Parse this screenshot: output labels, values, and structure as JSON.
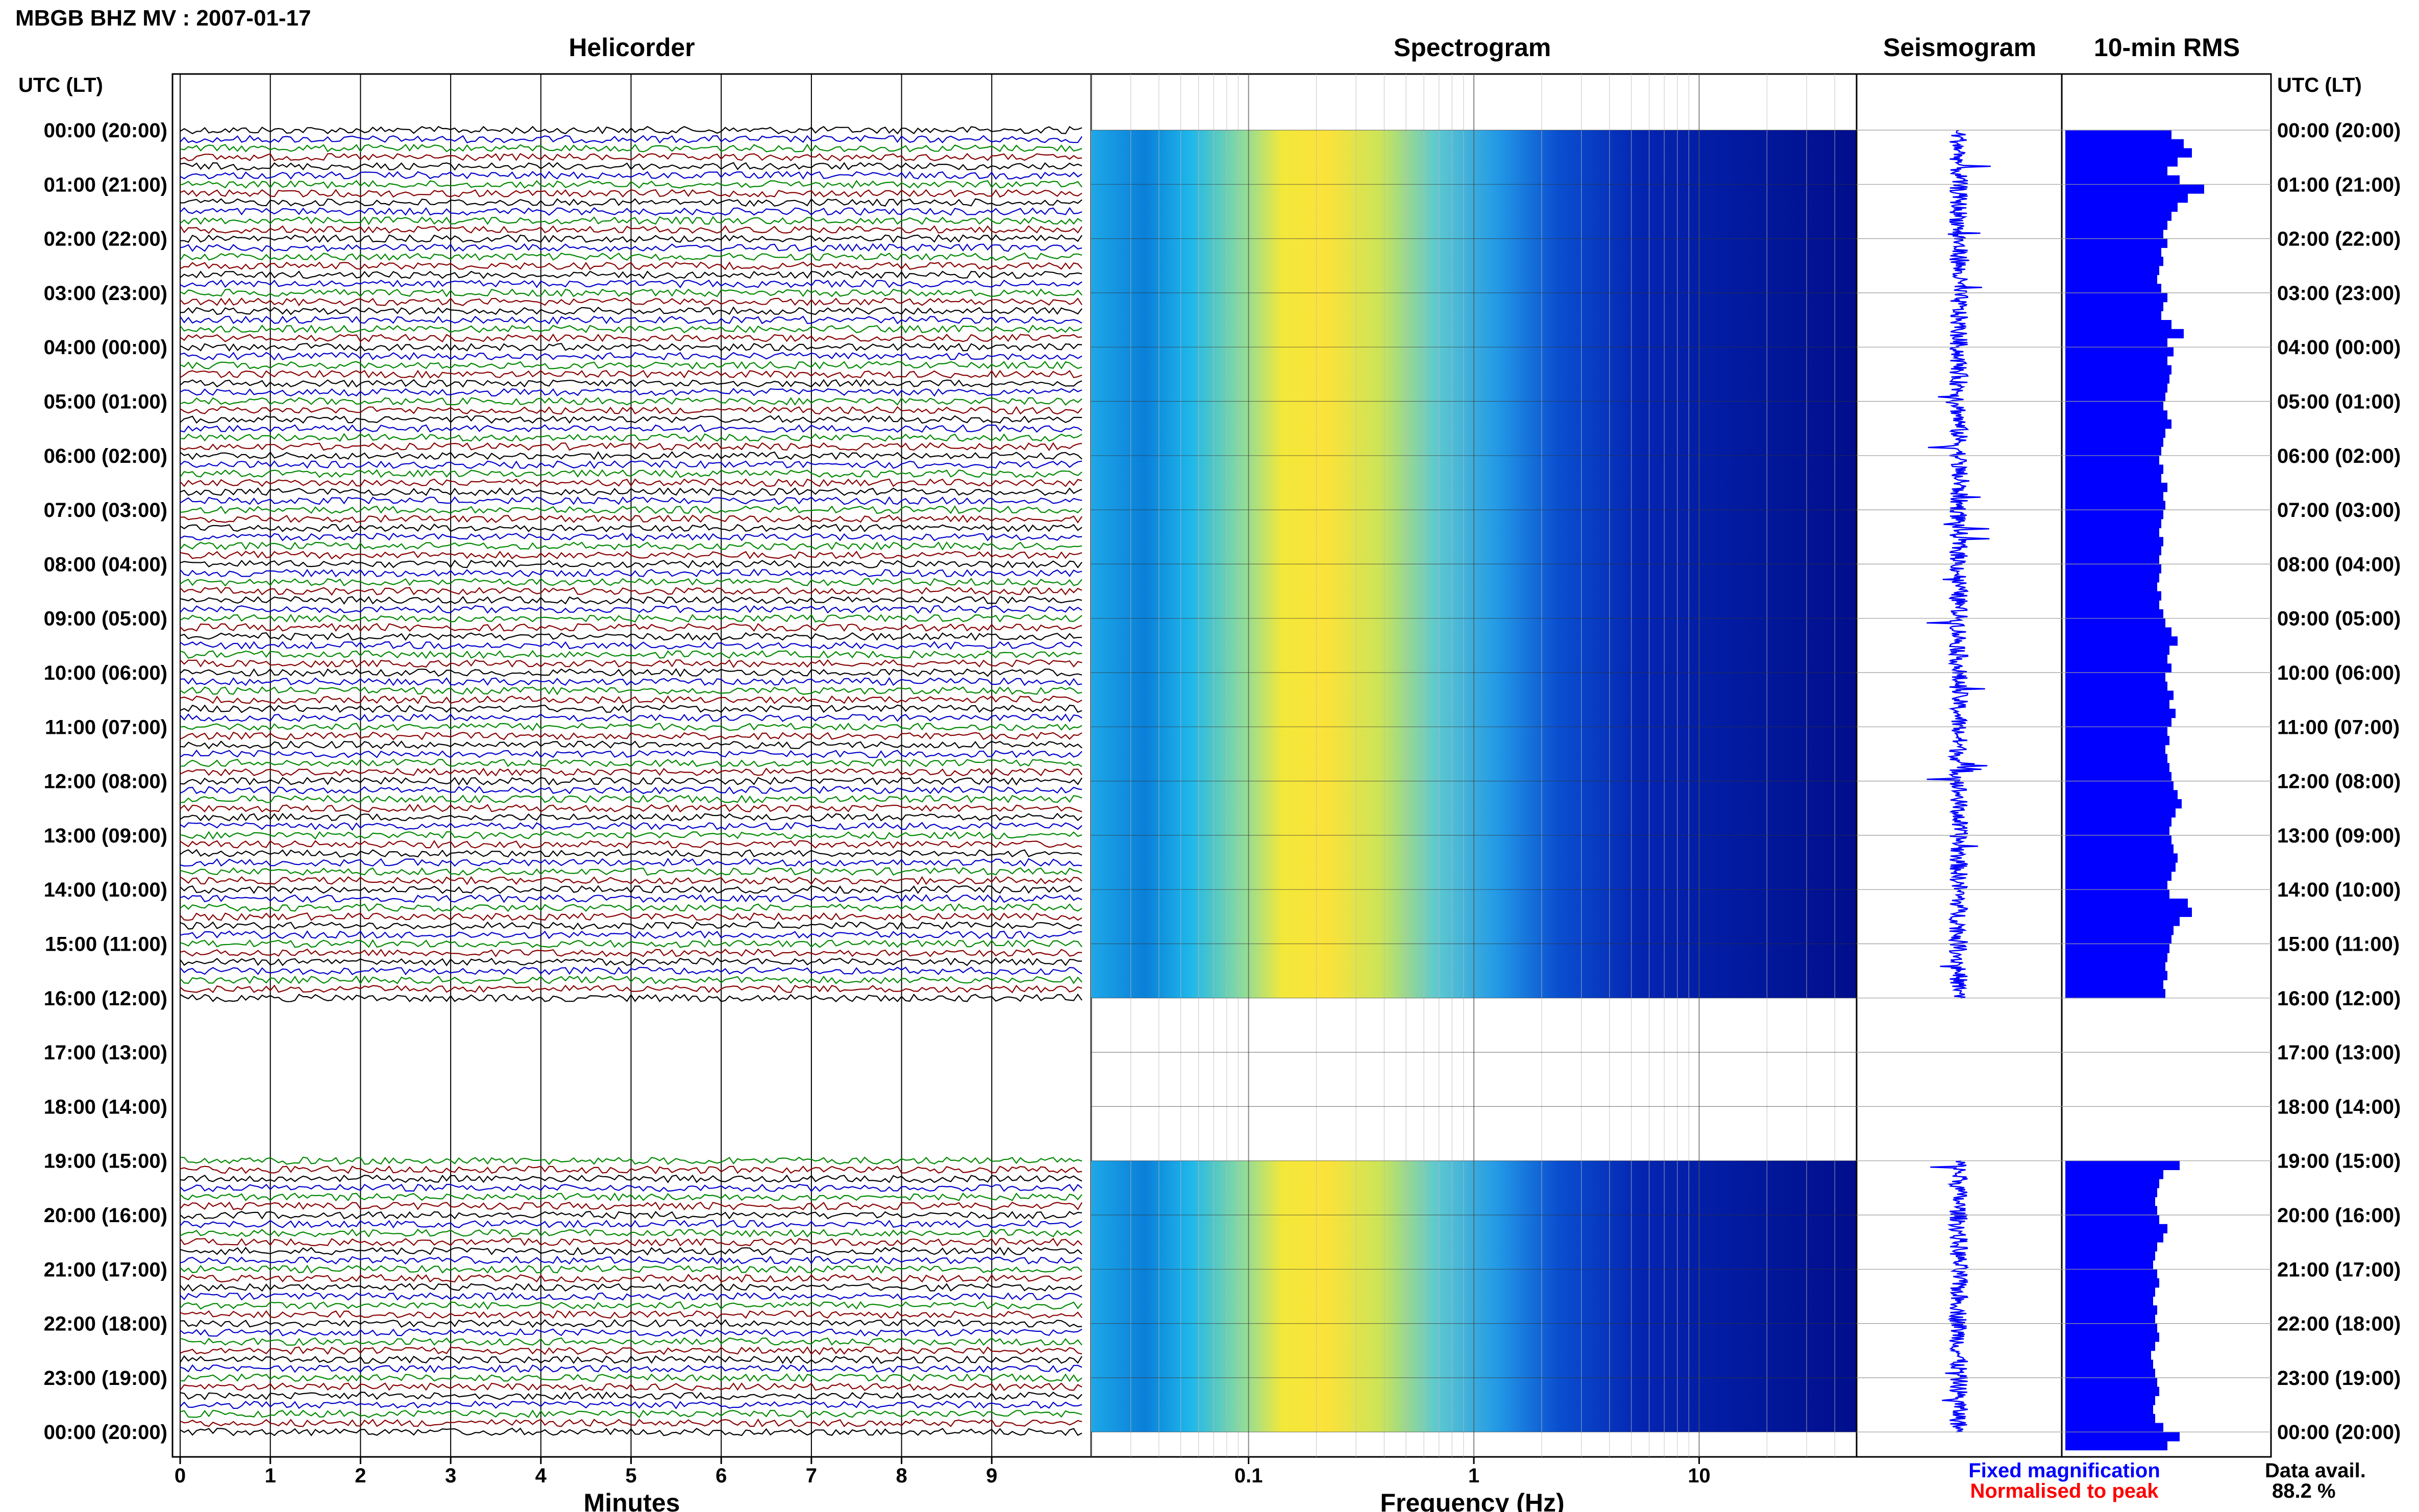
{
  "header": {
    "title": "MBGB BHZ MV : 2007-01-17",
    "utc_label_left": "UTC (LT)",
    "utc_label_right": "UTC (LT)"
  },
  "panels": {
    "helicorder": "Helicorder",
    "spectrogram": "Spectrogram",
    "seismogram": "Seismogram",
    "rms": "10-min RMS"
  },
  "footer": {
    "minutes_label": "Minutes",
    "frequency_label": "Frequency (Hz)",
    "legend_fixed": "Fixed magnification",
    "legend_normalised": "Normalised to peak",
    "data_avail_label": "Data avail.",
    "data_avail_value": "88.2 %"
  },
  "colors": {
    "legend_fixed": "#0000ff",
    "legend_normalised": "#ff0000",
    "trace_palette": [
      "#000000",
      "#0000cc",
      "#008800",
      "#880000"
    ],
    "rms_bar": "#0000ff",
    "seismogram_trace": "#0000ff"
  },
  "time_labels": [
    "00:00 (20:00)",
    "01:00 (21:00)",
    "02:00 (22:00)",
    "03:00 (23:00)",
    "04:00 (00:00)",
    "05:00 (01:00)",
    "06:00 (02:00)",
    "07:00 (03:00)",
    "08:00 (04:00)",
    "09:00 (05:00)",
    "10:00 (06:00)",
    "11:00 (07:00)",
    "12:00 (08:00)",
    "13:00 (09:00)",
    "14:00 (10:00)",
    "15:00 (11:00)",
    "16:00 (12:00)",
    "17:00 (13:00)",
    "18:00 (14:00)",
    "19:00 (15:00)",
    "20:00 (16:00)",
    "21:00 (17:00)",
    "22:00 (18:00)",
    "23:00 (19:00)",
    "00:00 (20:00)"
  ],
  "chart_data": [
    {
      "type": "line",
      "panel": "helicorder",
      "xlabel": "Minutes",
      "x_ticks": [
        "0",
        "1",
        "2",
        "3",
        "4",
        "5",
        "6",
        "7",
        "8",
        "9"
      ],
      "xlim": [
        0,
        10
      ],
      "rows_per_hour": 6,
      "data_gaps_utc_hours": [
        [
          16.0,
          18.85
        ]
      ]
    },
    {
      "type": "heatmap",
      "panel": "spectrogram",
      "xlabel": "Frequency (Hz)",
      "x_scale": "log",
      "x_ticks": [
        "0.1",
        "1",
        "10"
      ],
      "xlim": [
        0.02,
        50
      ],
      "data_gaps_utc_hours": [
        [
          16.0,
          19.0
        ]
      ]
    },
    {
      "type": "line",
      "panel": "seismogram",
      "data_gaps_utc_hours": [
        [
          16.0,
          19.0
        ]
      ]
    },
    {
      "type": "bar",
      "panel": "10-min RMS",
      "orientation": "horizontal",
      "bin_minutes": 10,
      "values": [
        0.52,
        0.58,
        0.62,
        0.55,
        0.5,
        0.56,
        0.68,
        0.6,
        0.55,
        0.52,
        0.5,
        0.48,
        0.5,
        0.47,
        0.48,
        0.46,
        0.45,
        0.47,
        0.5,
        0.48,
        0.47,
        0.52,
        0.58,
        0.5,
        0.53,
        0.5,
        0.52,
        0.51,
        0.5,
        0.49,
        0.48,
        0.5,
        0.52,
        0.49,
        0.48,
        0.47,
        0.46,
        0.48,
        0.47,
        0.5,
        0.48,
        0.49,
        0.48,
        0.47,
        0.46,
        0.48,
        0.47,
        0.46,
        0.47,
        0.46,
        0.45,
        0.47,
        0.46,
        0.48,
        0.49,
        0.52,
        0.55,
        0.51,
        0.5,
        0.52,
        0.49,
        0.5,
        0.53,
        0.51,
        0.54,
        0.52,
        0.5,
        0.51,
        0.49,
        0.5,
        0.51,
        0.52,
        0.53,
        0.55,
        0.57,
        0.54,
        0.52,
        0.51,
        0.52,
        0.53,
        0.55,
        0.54,
        0.52,
        0.5,
        0.51,
        0.6,
        0.62,
        0.56,
        0.53,
        0.52,
        0.51,
        0.5,
        0.49,
        0.5,
        0.48,
        0.49,
        null,
        null,
        null,
        null,
        null,
        null,
        null,
        null,
        null,
        null,
        null,
        null,
        null,
        null,
        null,
        null,
        null,
        null,
        0.56,
        0.48,
        0.46,
        0.45,
        0.44,
        0.45,
        0.46,
        0.5,
        0.48,
        0.45,
        0.44,
        0.43,
        0.45,
        0.46,
        0.44,
        0.43,
        0.45,
        0.44,
        0.45,
        0.46,
        0.44,
        0.42,
        0.43,
        0.44,
        0.45,
        0.46,
        0.44,
        0.43,
        0.44,
        0.48,
        0.56,
        0.5
      ]
    }
  ]
}
